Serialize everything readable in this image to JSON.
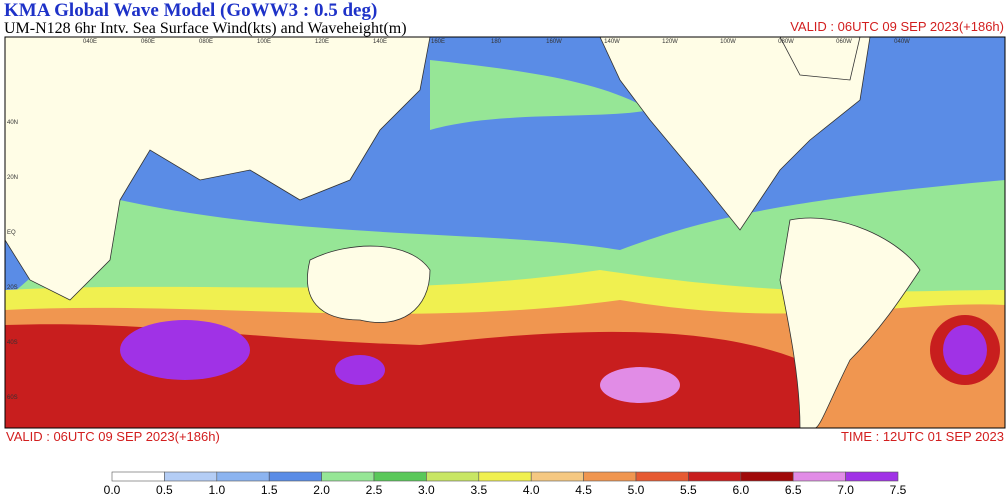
{
  "header": {
    "title": "KMA  Global Wave Model (GoWW3 : 0.5 deg)",
    "subtitle": "UM-N128  6hr Intv. Sea Surface Wind(kts) and Waveheight(m)",
    "valid_top": "VALID : 06UTC 09 SEP 2023(+186h)"
  },
  "map": {
    "lon_labels": [
      "040E",
      "060E",
      "080E",
      "100E",
      "120E",
      "140E",
      "160E",
      "180",
      "160W",
      "140W",
      "120W",
      "100W",
      "080W",
      "060W",
      "040W"
    ],
    "lat_labels": [
      "40N",
      "20N",
      "EQ",
      "20S",
      "40S",
      "60S"
    ]
  },
  "footer": {
    "valid": "VALID : 06UTC 09 SEP 2023(+186h)",
    "time": "TIME : 12UTC 01 SEP 2023"
  },
  "colorbar": {
    "colors": [
      "#ffffff",
      "#b4cdf5",
      "#8cb4f0",
      "#5a8ce6",
      "#96e696",
      "#5ac85a",
      "#c8e664",
      "#f0f050",
      "#f5c882",
      "#f09650",
      "#e65a32",
      "#c81e1e",
      "#a00a0a",
      "#e18ce6",
      "#a032e6"
    ],
    "ticks": [
      {
        "value": 0,
        "label": "0.0"
      },
      {
        "value": 0.5,
        "label": "0.5"
      },
      {
        "value": 1,
        "label": "1.0"
      },
      {
        "value": 1.5,
        "label": "1.5"
      },
      {
        "value": 2,
        "label": "2.0"
      },
      {
        "value": 2.5,
        "label": "2.5"
      },
      {
        "value": 3,
        "label": "3.0"
      },
      {
        "value": 3.5,
        "label": "3.5"
      },
      {
        "value": 4,
        "label": "4.0"
      },
      {
        "value": 4.5,
        "label": "4.5"
      },
      {
        "value": 5,
        "label": "5.0"
      },
      {
        "value": 5.5,
        "label": "5.5"
      },
      {
        "value": 6,
        "label": "6.0"
      },
      {
        "value": 6.5,
        "label": "6.5"
      },
      {
        "value": 7,
        "label": "7.0"
      },
      {
        "value": 7.5,
        "label": "7.5"
      }
    ]
  }
}
